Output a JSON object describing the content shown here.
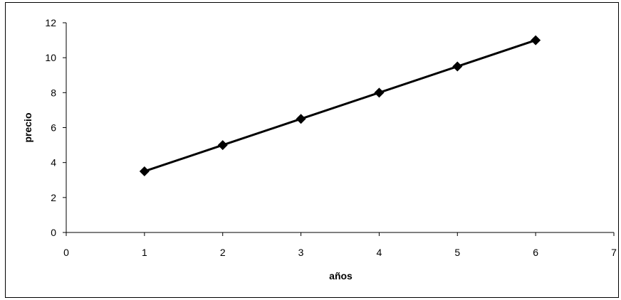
{
  "chart_data": {
    "type": "line",
    "title": "",
    "xlabel": "años",
    "ylabel": "precio",
    "xlim": [
      0,
      7
    ],
    "ylim": [
      0,
      12
    ],
    "x_ticks": [
      0,
      1,
      2,
      3,
      4,
      5,
      6,
      7
    ],
    "y_ticks": [
      0,
      2,
      4,
      6,
      8,
      10,
      12
    ],
    "grid": false,
    "legend": "none",
    "series": [
      {
        "marker": "diamond",
        "color": "#000000",
        "x": [
          1,
          2,
          3,
          4,
          5,
          6
        ],
        "y": [
          3.5,
          5,
          6.5,
          8,
          9.5,
          11
        ]
      }
    ]
  }
}
